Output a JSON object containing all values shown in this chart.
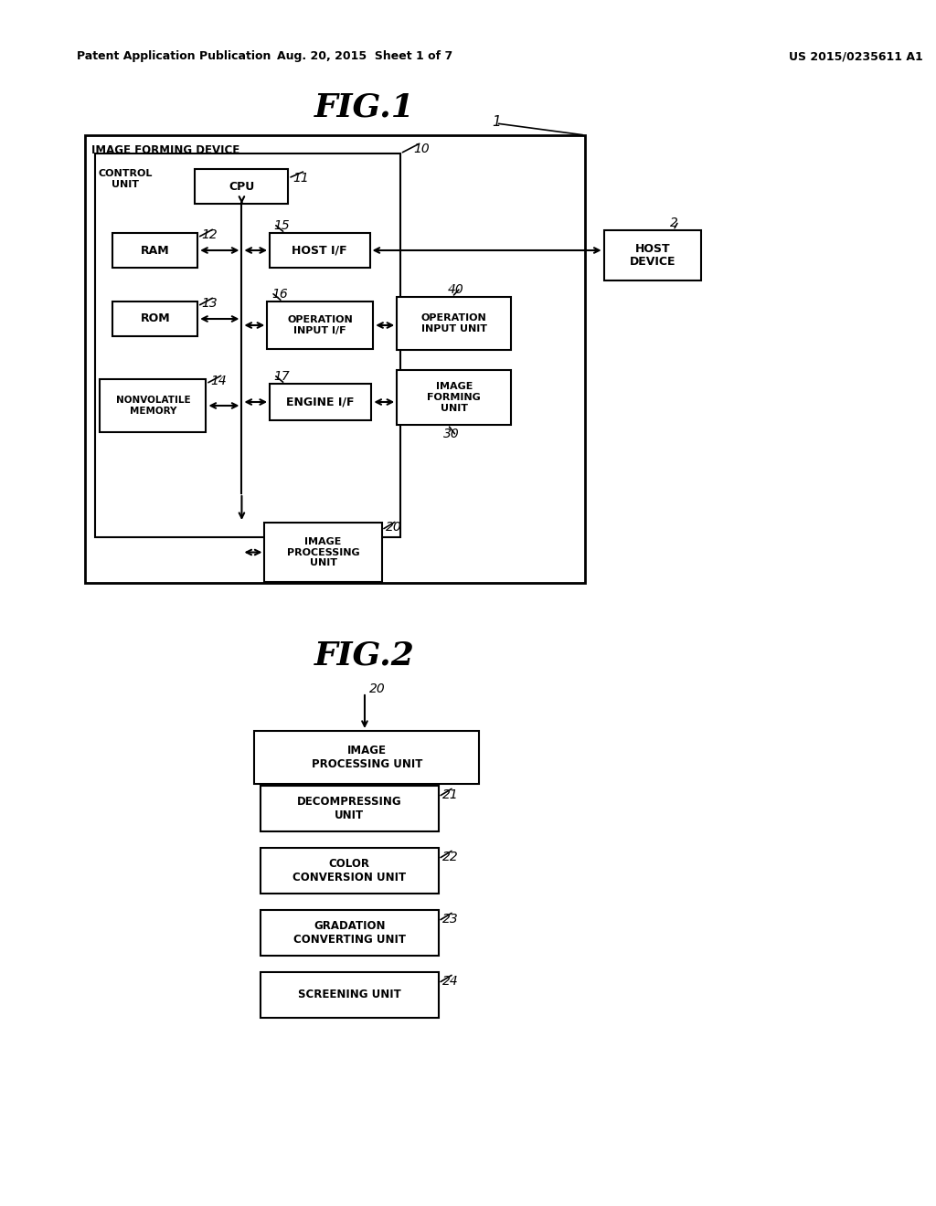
{
  "bg_color": "#ffffff",
  "header_left": "Patent Application Publication",
  "header_center": "Aug. 20, 2015  Sheet 1 of 7",
  "header_right": "US 2015/0235611 A1",
  "fig1_title": "FIG.1",
  "fig2_title": "FIG.2",
  "fig1": {
    "outer_box_label": "IMAGE FORMING DEVICE",
    "outer_ref": "1",
    "control_unit_ref": "10",
    "cpu_ref": "11",
    "ram_ref": "12",
    "rom_ref": "13",
    "nonvol_ref": "14",
    "host_if_ref": "15",
    "op_if_ref": "16",
    "engine_if_ref": "17",
    "img_proc_ref": "20",
    "op_unit_ref": "40",
    "img_form_ref": "30",
    "host_dev_ref": "2"
  },
  "fig2": {
    "img_proc_ref": "20",
    "decomp_ref": "21",
    "color_ref": "22",
    "grad_ref": "23",
    "screen_ref": "24"
  }
}
